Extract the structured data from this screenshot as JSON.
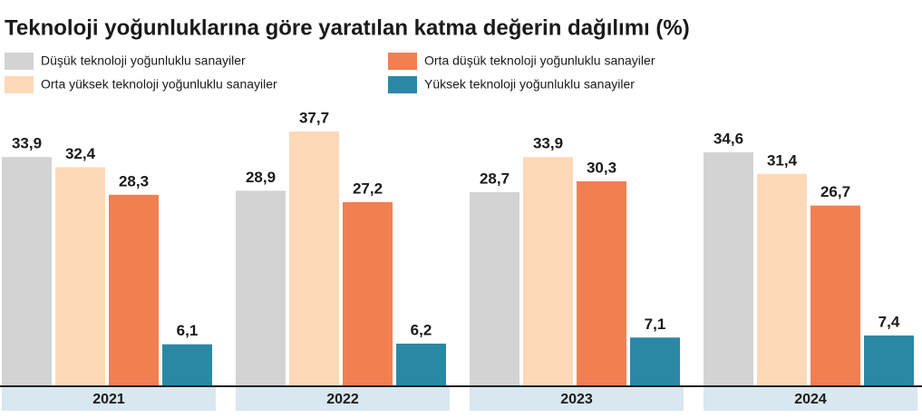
{
  "chart_data": {
    "type": "bar",
    "title": "Teknoloji yoğunluklarına göre yaratılan katma değerin dağılımı (%)",
    "categories": [
      "2021",
      "2022",
      "2023",
      "2024"
    ],
    "series": [
      {
        "name": "Düşük teknoloji yoğunluklu sanayiler",
        "color": "#d3d3d4",
        "values": [
          33.9,
          28.9,
          28.7,
          34.6
        ],
        "value_labels": [
          "33,9",
          "28,9",
          "28,7",
          "34,6"
        ]
      },
      {
        "name": "Orta yüksek teknoloji yoğunluklu sanayiler",
        "color": "#fdd9b8",
        "values": [
          32.4,
          37.7,
          33.9,
          31.4
        ],
        "value_labels": [
          "32,4",
          "37,7",
          "33,9",
          "31,4"
        ]
      },
      {
        "name": "Orta düşük teknoloji yoğunluklu sanayiler",
        "color": "#f27f51",
        "values": [
          28.3,
          27.2,
          30.3,
          26.7
        ],
        "value_labels": [
          "28,3",
          "27,2",
          "30,3",
          "26,7"
        ]
      },
      {
        "name": "Yüksek teknoloji yoğunluklu sanayiler",
        "color": "#2a88a5",
        "values": [
          6.1,
          6.2,
          7.1,
          7.4
        ],
        "value_labels": [
          "6,1",
          "6,2",
          "7,1",
          "7,4"
        ]
      }
    ]
  }
}
